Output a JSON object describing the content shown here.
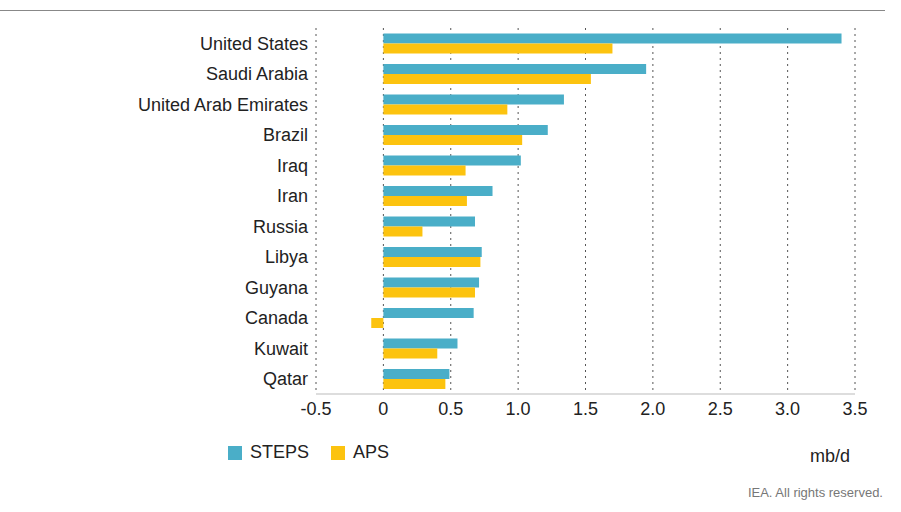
{
  "chart_data": {
    "type": "bar",
    "orientation": "horizontal",
    "x_label": "mb/d",
    "source": "IEA. All rights reserved.",
    "categories": [
      "United States",
      "Saudi Arabia",
      "United Arab Emirates",
      "Brazil",
      "Iraq",
      "Iran",
      "Russia",
      "Libya",
      "Guyana",
      "Canada",
      "Kuwait",
      "Qatar"
    ],
    "series": [
      {
        "name": "STEPS",
        "color": "#4aaec8",
        "values": [
          3.4,
          1.95,
          1.34,
          1.22,
          1.02,
          0.81,
          0.68,
          0.73,
          0.71,
          0.67,
          0.55,
          0.49
        ]
      },
      {
        "name": "APS",
        "color": "#fcc30f",
        "values": [
          1.7,
          1.54,
          0.92,
          1.03,
          0.61,
          0.62,
          0.29,
          0.72,
          0.68,
          -0.09,
          0.4,
          0.46
        ]
      }
    ],
    "xlim": [
      -0.5,
      3.5
    ],
    "xticks": [
      -0.5,
      0,
      0.5,
      {
        "value": 1,
        "label": "1.0"
      },
      1.5,
      {
        "value": 2,
        "label": "2.0"
      },
      2.5,
      {
        "value": 3,
        "label": "3.0"
      },
      3.5
    ],
    "grid": true,
    "legend": "bottom left"
  }
}
